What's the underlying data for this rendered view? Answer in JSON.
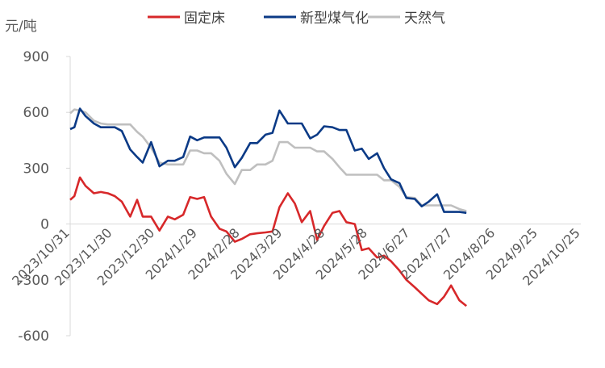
{
  "chart_data": {
    "type": "line",
    "unit_label": "元/吨",
    "ylim": [
      -600,
      900
    ],
    "yticks": [
      900,
      600,
      300,
      0,
      -300,
      -600
    ],
    "xlim": [
      "2023-10-31",
      "2024-10-31"
    ],
    "x_tick_labels": [
      "2023/10/31",
      "2023/11/30",
      "2023/12/30",
      "2024/1/29",
      "2024/2/28",
      "2024/3/29",
      "2024/4/28",
      "2024/5/28",
      "2024/6/27",
      "2024/7/27",
      "2024/8/26",
      "2024/9/25",
      "2024/10/25"
    ],
    "grid": false,
    "legend_position": "top",
    "series": [
      {
        "name": "固定床",
        "color": "#d7282a",
        "points": [
          [
            "2023-10-31",
            130
          ],
          [
            "2023-11-03",
            150
          ],
          [
            "2023-11-07",
            250
          ],
          [
            "2023-11-11",
            205
          ],
          [
            "2023-11-17",
            165
          ],
          [
            "2023-11-22",
            172
          ],
          [
            "2023-11-27",
            165
          ],
          [
            "2023-12-02",
            150
          ],
          [
            "2023-12-07",
            120
          ],
          [
            "2023-12-13",
            40
          ],
          [
            "2023-12-18",
            130
          ],
          [
            "2023-12-22",
            40
          ],
          [
            "2023-12-28",
            40
          ],
          [
            "2024-01-03",
            -35
          ],
          [
            "2024-01-09",
            40
          ],
          [
            "2024-01-14",
            25
          ],
          [
            "2024-01-20",
            50
          ],
          [
            "2024-01-25",
            145
          ],
          [
            "2024-01-30",
            135
          ],
          [
            "2024-02-04",
            145
          ],
          [
            "2024-02-09",
            40
          ],
          [
            "2024-02-15",
            -25
          ],
          [
            "2024-02-20",
            -40
          ],
          [
            "2024-02-26",
            -95
          ],
          [
            "2024-03-02",
            -80
          ],
          [
            "2024-03-08",
            -55
          ],
          [
            "2024-03-13",
            -50
          ],
          [
            "2024-03-19",
            -45
          ],
          [
            "2024-03-24",
            -40
          ],
          [
            "2024-03-29",
            90
          ],
          [
            "2024-04-04",
            165
          ],
          [
            "2024-04-09",
            110
          ],
          [
            "2024-04-14",
            10
          ],
          [
            "2024-04-20",
            70
          ],
          [
            "2024-04-25",
            -85
          ],
          [
            "2024-04-30",
            -10
          ],
          [
            "2024-05-06",
            60
          ],
          [
            "2024-05-11",
            70
          ],
          [
            "2024-05-16",
            10
          ],
          [
            "2024-05-22",
            0
          ],
          [
            "2024-05-27",
            -140
          ],
          [
            "2024-06-01",
            -130
          ],
          [
            "2024-06-07",
            -180
          ],
          [
            "2024-06-12",
            -170
          ],
          [
            "2024-06-17",
            -200
          ],
          [
            "2024-06-23",
            -250
          ],
          [
            "2024-06-28",
            -300
          ],
          [
            "2024-07-04",
            -340
          ],
          [
            "2024-07-09",
            -375
          ],
          [
            "2024-07-14",
            -410
          ],
          [
            "2024-07-20",
            -430
          ],
          [
            "2024-07-25",
            -390
          ],
          [
            "2024-07-30",
            -330
          ],
          [
            "2024-08-05",
            -410
          ],
          [
            "2024-08-10",
            -440
          ]
        ]
      },
      {
        "name": "新型煤气化",
        "color": "#0b3a86",
        "points": [
          [
            "2023-10-31",
            510
          ],
          [
            "2023-11-03",
            520
          ],
          [
            "2023-11-07",
            620
          ],
          [
            "2023-11-11",
            580
          ],
          [
            "2023-11-17",
            540
          ],
          [
            "2023-11-22",
            520
          ],
          [
            "2023-11-27",
            520
          ],
          [
            "2023-12-02",
            520
          ],
          [
            "2023-12-07",
            500
          ],
          [
            "2023-12-13",
            400
          ],
          [
            "2023-12-18",
            360
          ],
          [
            "2023-12-22",
            330
          ],
          [
            "2023-12-28",
            440
          ],
          [
            "2024-01-03",
            310
          ],
          [
            "2024-01-09",
            340
          ],
          [
            "2024-01-14",
            340
          ],
          [
            "2024-01-20",
            360
          ],
          [
            "2024-01-25",
            470
          ],
          [
            "2024-01-30",
            450
          ],
          [
            "2024-02-04",
            465
          ],
          [
            "2024-02-09",
            465
          ],
          [
            "2024-02-15",
            465
          ],
          [
            "2024-02-20",
            410
          ],
          [
            "2024-02-26",
            305
          ],
          [
            "2024-03-02",
            355
          ],
          [
            "2024-03-08",
            435
          ],
          [
            "2024-03-13",
            435
          ],
          [
            "2024-03-19",
            480
          ],
          [
            "2024-03-24",
            490
          ],
          [
            "2024-03-29",
            610
          ],
          [
            "2024-04-04",
            540
          ],
          [
            "2024-04-09",
            540
          ],
          [
            "2024-04-14",
            540
          ],
          [
            "2024-04-20",
            460
          ],
          [
            "2024-04-25",
            480
          ],
          [
            "2024-04-30",
            525
          ],
          [
            "2024-05-06",
            520
          ],
          [
            "2024-05-11",
            505
          ],
          [
            "2024-05-16",
            505
          ],
          [
            "2024-05-22",
            395
          ],
          [
            "2024-05-27",
            405
          ],
          [
            "2024-06-01",
            350
          ],
          [
            "2024-06-07",
            380
          ],
          [
            "2024-06-12",
            300
          ],
          [
            "2024-06-17",
            240
          ],
          [
            "2024-06-23",
            220
          ],
          [
            "2024-06-28",
            140
          ],
          [
            "2024-07-04",
            135
          ],
          [
            "2024-07-09",
            95
          ],
          [
            "2024-07-14",
            120
          ],
          [
            "2024-07-20",
            160
          ],
          [
            "2024-07-25",
            65
          ],
          [
            "2024-07-30",
            65
          ],
          [
            "2024-08-05",
            65
          ],
          [
            "2024-08-10",
            60
          ]
        ]
      },
      {
        "name": "天然气",
        "color": "#bfbfbf",
        "points": [
          [
            "2023-10-31",
            595
          ],
          [
            "2023-11-03",
            615
          ],
          [
            "2023-11-07",
            610
          ],
          [
            "2023-11-11",
            600
          ],
          [
            "2023-11-17",
            555
          ],
          [
            "2023-11-22",
            540
          ],
          [
            "2023-11-27",
            535
          ],
          [
            "2023-12-02",
            535
          ],
          [
            "2023-12-07",
            535
          ],
          [
            "2023-12-13",
            535
          ],
          [
            "2023-12-18",
            495
          ],
          [
            "2023-12-22",
            470
          ],
          [
            "2023-12-28",
            410
          ],
          [
            "2024-01-03",
            330
          ],
          [
            "2024-01-09",
            320
          ],
          [
            "2024-01-14",
            320
          ],
          [
            "2024-01-20",
            320
          ],
          [
            "2024-01-25",
            395
          ],
          [
            "2024-01-30",
            395
          ],
          [
            "2024-02-04",
            380
          ],
          [
            "2024-02-09",
            380
          ],
          [
            "2024-02-15",
            340
          ],
          [
            "2024-02-20",
            270
          ],
          [
            "2024-02-26",
            215
          ],
          [
            "2024-03-02",
            290
          ],
          [
            "2024-03-08",
            290
          ],
          [
            "2024-03-13",
            320
          ],
          [
            "2024-03-19",
            320
          ],
          [
            "2024-03-24",
            340
          ],
          [
            "2024-03-29",
            440
          ],
          [
            "2024-04-04",
            440
          ],
          [
            "2024-04-09",
            410
          ],
          [
            "2024-04-14",
            410
          ],
          [
            "2024-04-20",
            410
          ],
          [
            "2024-04-25",
            390
          ],
          [
            "2024-04-30",
            390
          ],
          [
            "2024-05-06",
            350
          ],
          [
            "2024-05-11",
            305
          ],
          [
            "2024-05-16",
            265
          ],
          [
            "2024-05-22",
            265
          ],
          [
            "2024-05-27",
            265
          ],
          [
            "2024-06-01",
            265
          ],
          [
            "2024-06-07",
            265
          ],
          [
            "2024-06-12",
            235
          ],
          [
            "2024-06-17",
            235
          ],
          [
            "2024-06-23",
            200
          ],
          [
            "2024-06-28",
            145
          ],
          [
            "2024-07-04",
            140
          ],
          [
            "2024-07-09",
            100
          ],
          [
            "2024-07-14",
            100
          ],
          [
            "2024-07-20",
            100
          ],
          [
            "2024-07-25",
            100
          ],
          [
            "2024-07-30",
            100
          ],
          [
            "2024-08-05",
            80
          ],
          [
            "2024-08-10",
            70
          ]
        ]
      }
    ]
  }
}
